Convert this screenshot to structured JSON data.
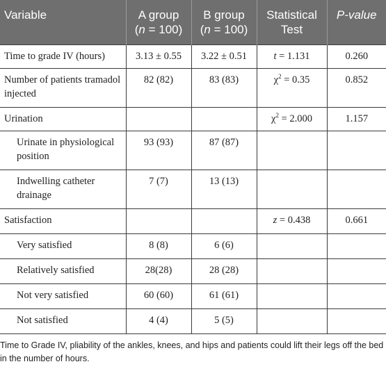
{
  "header": {
    "variable": "Variable",
    "a_group": "A group",
    "a_group_n": "(n = 100)",
    "b_group": "B group",
    "b_group_n": "(n = 100)",
    "statistical_test": "Statistical Test",
    "p_value": "P-value"
  },
  "rows": [
    {
      "variable": "Time to grade IV (hours)",
      "a": "3.13 ± 0.55",
      "b": "3.22 ± 0.51",
      "test": "t = 1.131",
      "p": "0.260"
    },
    {
      "variable": "Number of patients tramadol injected",
      "a": "82 (82)",
      "b": "83 (83)",
      "test_symbol": "χ",
      "test_sup": "2",
      "test_rest": " = 0.35",
      "p": "0.852"
    },
    {
      "variable": "Urination",
      "a": "",
      "b": "",
      "test_symbol": "χ",
      "test_sup": "2",
      "test_rest": " = 2.000",
      "p": "1.157"
    },
    {
      "variable": "Urinate in physiological position",
      "a": "93 (93)",
      "b": "87 (87)",
      "test": "",
      "p": ""
    },
    {
      "variable": "Indwelling catheter drainage",
      "a": "7 (7)",
      "b": "13 (13)",
      "test": "",
      "p": ""
    },
    {
      "variable": "Satisfaction",
      "a": "",
      "b": "",
      "test": "z = 0.438",
      "p": "0.661"
    },
    {
      "variable": "Very satisfied",
      "a": "8 (8)",
      "b": "6 (6)",
      "test": "",
      "p": ""
    },
    {
      "variable": "Relatively satisfied",
      "a": "28(28)",
      "b": "28 (28)",
      "test": "",
      "p": ""
    },
    {
      "variable": "Not very satisfied",
      "a": "60 (60)",
      "b": "61 (61)",
      "test": "",
      "p": ""
    },
    {
      "variable": "Not satisfied",
      "a": "4 (4)",
      "b": "5 (5)",
      "test": "",
      "p": ""
    }
  ],
  "footnote": "Time to Grade IV, pliability of the ankles, knees, and hips and patients could lift their legs off the bed in the number of hours."
}
